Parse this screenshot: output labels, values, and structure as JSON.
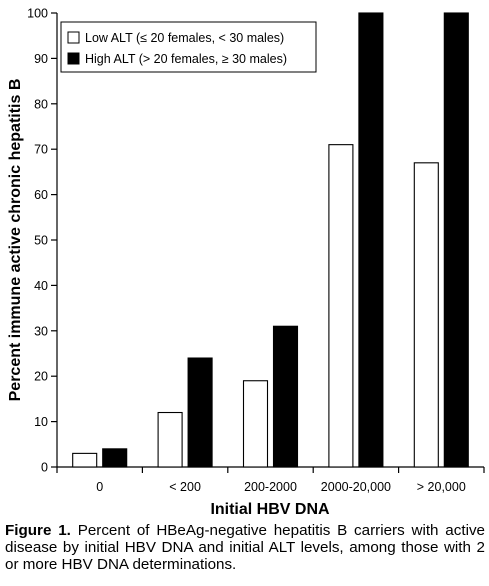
{
  "chart_data": {
    "type": "bar",
    "categories": [
      "0",
      "< 200",
      "200-2000",
      "2000-20,000",
      "> 20,000"
    ],
    "series": [
      {
        "name": "Low ALT (≤ 20 females, < 30 males)",
        "values": [
          3,
          12,
          19,
          71,
          67
        ],
        "color": "#ffffff"
      },
      {
        "name": "High ALT (> 20 females, ≥ 30 males)",
        "values": [
          4,
          24,
          31,
          100,
          100
        ],
        "color": "#000000"
      }
    ],
    "xlabel": "Initial HBV DNA",
    "ylabel": "Percent immune active chronic hepatitis B",
    "ylim": [
      0,
      100
    ],
    "yticks": [
      0,
      10,
      20,
      30,
      40,
      50,
      60,
      70,
      80,
      90,
      100
    ],
    "legend_position": "top-left",
    "grid": false
  },
  "caption": {
    "label": "Figure 1.",
    "text": "Percent of HBeAg-negative hepatitis B carriers with active disease by initial HBV DNA and initial ALT levels, among those with 2 or more HBV DNA determinations."
  }
}
